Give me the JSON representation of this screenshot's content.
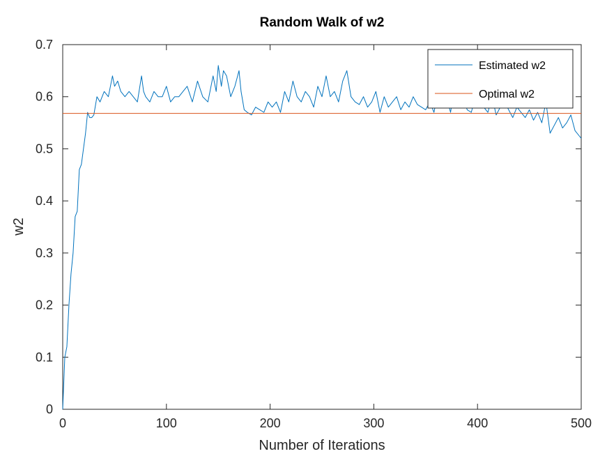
{
  "chart_data": {
    "type": "line",
    "title": "Random Walk of w2",
    "xlabel": "Number of Iterations",
    "ylabel": "w2",
    "xlim": [
      0,
      500
    ],
    "ylim": [
      0,
      0.7
    ],
    "xticks": [
      0,
      100,
      200,
      300,
      400,
      500
    ],
    "xtick_labels": [
      "0",
      "100",
      "200",
      "300",
      "400",
      "500"
    ],
    "yticks": [
      0,
      0.1,
      0.2,
      0.3,
      0.4,
      0.5,
      0.6,
      0.7
    ],
    "ytick_labels": [
      "0",
      "0.1",
      "0.2",
      "0.3",
      "0.4",
      "0.5",
      "0.6",
      "0.7"
    ],
    "grid": false,
    "legend_position": "top-right",
    "series": [
      {
        "name": "Estimated w2",
        "color": "#0072BD",
        "x": [
          0,
          2,
          4,
          6,
          8,
          10,
          12,
          14,
          16,
          18,
          20,
          22,
          24,
          26,
          28,
          30,
          33,
          36,
          40,
          44,
          48,
          50,
          53,
          56,
          60,
          64,
          68,
          72,
          76,
          78,
          80,
          84,
          88,
          92,
          96,
          100,
          104,
          108,
          112,
          116,
          120,
          125,
          130,
          135,
          140,
          145,
          148,
          150,
          153,
          155,
          158,
          162,
          166,
          170,
          172,
          175,
          178,
          182,
          186,
          190,
          194,
          198,
          202,
          206,
          210,
          214,
          218,
          222,
          226,
          230,
          234,
          238,
          242,
          246,
          250,
          254,
          258,
          262,
          266,
          270,
          274,
          278,
          282,
          286,
          290,
          294,
          298,
          302,
          306,
          310,
          314,
          318,
          322,
          326,
          330,
          334,
          338,
          342,
          346,
          350,
          354,
          358,
          362,
          366,
          370,
          374,
          378,
          382,
          386,
          390,
          394,
          398,
          402,
          406,
          410,
          414,
          418,
          422,
          426,
          430,
          434,
          438,
          442,
          446,
          450,
          454,
          458,
          462,
          466,
          470,
          474,
          478,
          482,
          486,
          490,
          494,
          498,
          500
        ],
        "values": [
          0,
          0.1,
          0.12,
          0.2,
          0.26,
          0.3,
          0.37,
          0.38,
          0.46,
          0.47,
          0.5,
          0.53,
          0.57,
          0.56,
          0.56,
          0.565,
          0.6,
          0.59,
          0.61,
          0.6,
          0.64,
          0.62,
          0.63,
          0.61,
          0.6,
          0.61,
          0.6,
          0.59,
          0.64,
          0.61,
          0.6,
          0.59,
          0.61,
          0.6,
          0.6,
          0.62,
          0.59,
          0.6,
          0.6,
          0.61,
          0.62,
          0.59,
          0.63,
          0.6,
          0.59,
          0.64,
          0.61,
          0.66,
          0.62,
          0.65,
          0.64,
          0.6,
          0.62,
          0.65,
          0.61,
          0.575,
          0.57,
          0.565,
          0.58,
          0.575,
          0.57,
          0.59,
          0.58,
          0.59,
          0.57,
          0.61,
          0.59,
          0.63,
          0.6,
          0.59,
          0.61,
          0.6,
          0.58,
          0.62,
          0.6,
          0.64,
          0.6,
          0.61,
          0.59,
          0.63,
          0.65,
          0.6,
          0.59,
          0.585,
          0.6,
          0.58,
          0.59,
          0.61,
          0.57,
          0.6,
          0.58,
          0.59,
          0.6,
          0.575,
          0.59,
          0.58,
          0.6,
          0.585,
          0.58,
          0.575,
          0.59,
          0.57,
          0.61,
          0.585,
          0.6,
          0.57,
          0.62,
          0.58,
          0.6,
          0.575,
          0.57,
          0.6,
          0.61,
          0.58,
          0.57,
          0.6,
          0.565,
          0.58,
          0.59,
          0.575,
          0.56,
          0.58,
          0.57,
          0.56,
          0.575,
          0.555,
          0.57,
          0.55,
          0.59,
          0.53,
          0.545,
          0.56,
          0.54,
          0.55,
          0.565,
          0.535,
          0.525,
          0.52
        ],
        "line_width": 1
      },
      {
        "name": "Optimal w2",
        "color": "#D95319",
        "x": [
          0,
          500
        ],
        "values": [
          0.568,
          0.568
        ],
        "line_width": 1
      }
    ]
  }
}
